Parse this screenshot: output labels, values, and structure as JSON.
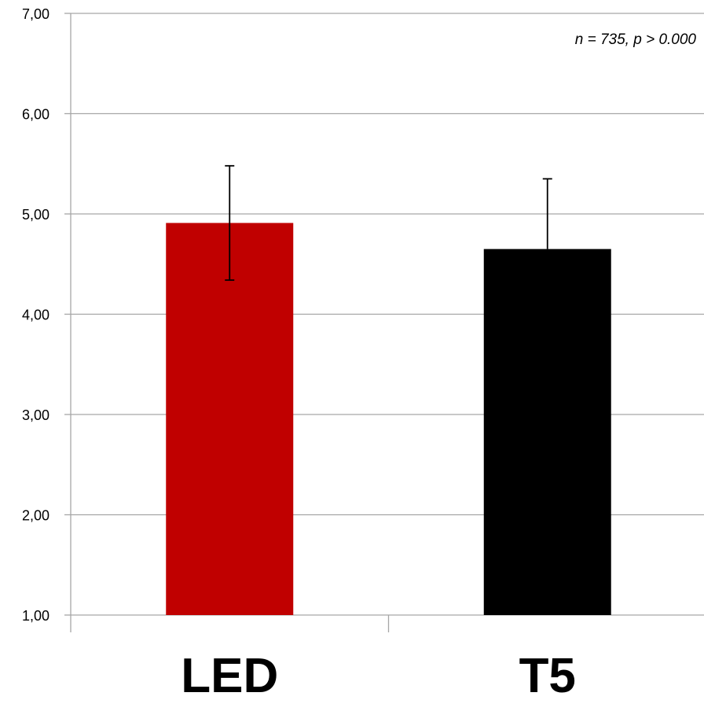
{
  "chart_data": {
    "type": "bar",
    "categories": [
      "LED",
      "T5"
    ],
    "values": [
      4.91,
      4.65
    ],
    "error_upper": [
      5.48,
      5.35
    ],
    "error_lower": [
      4.34,
      4.65
    ],
    "ylim": [
      1,
      7
    ],
    "yticks": [
      "1,00",
      "2,00",
      "3,00",
      "4,00",
      "5,00",
      "6,00",
      "7,00"
    ],
    "grid": true,
    "annotation": "n = 735, p > 0.000",
    "colors": [
      "#C00000",
      "#000000"
    ],
    "gridline_color": "#A6A6A6",
    "axis_color": "#A6A6A6"
  }
}
